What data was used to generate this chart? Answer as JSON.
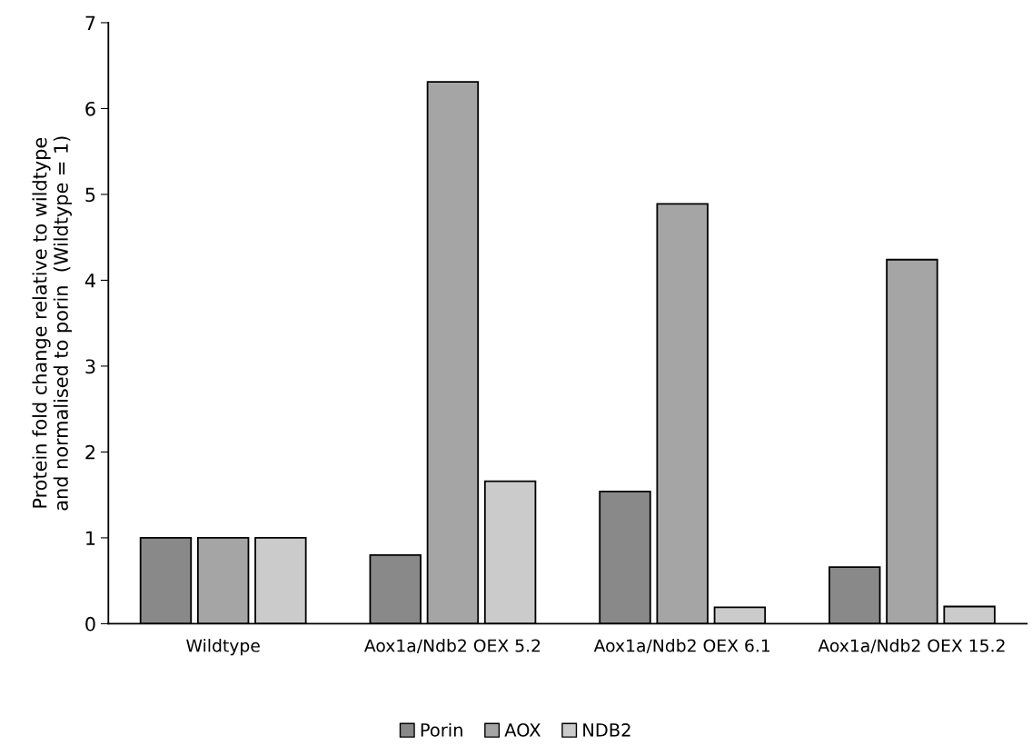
{
  "chart_data": {
    "type": "bar",
    "ylabel": "Protein fold change relative to wildtype\nand normalised to porin  (Wildtype = 1)",
    "categories": [
      "Wildtype",
      "Aox1a/Ndb2 OEX 5.2",
      "Aox1a/Ndb2 OEX 6.1",
      "Aox1a/Ndb2 OEX 15.2"
    ],
    "series": [
      {
        "name": "Porin",
        "color": "#898989",
        "values": [
          1,
          0.8,
          1.54,
          0.66
        ]
      },
      {
        "name": "AOX",
        "color": "#a5a5a5",
        "values": [
          1,
          6.31,
          4.89,
          4.24
        ]
      },
      {
        "name": "NDB2",
        "color": "#cbcbcb",
        "values": [
          1,
          1.66,
          0.19,
          0.2
        ]
      }
    ],
    "ylim": [
      0,
      7
    ],
    "yticks": [
      0,
      1,
      2,
      3,
      4,
      5,
      6,
      7
    ],
    "grid": false,
    "legend": "bottom"
  }
}
